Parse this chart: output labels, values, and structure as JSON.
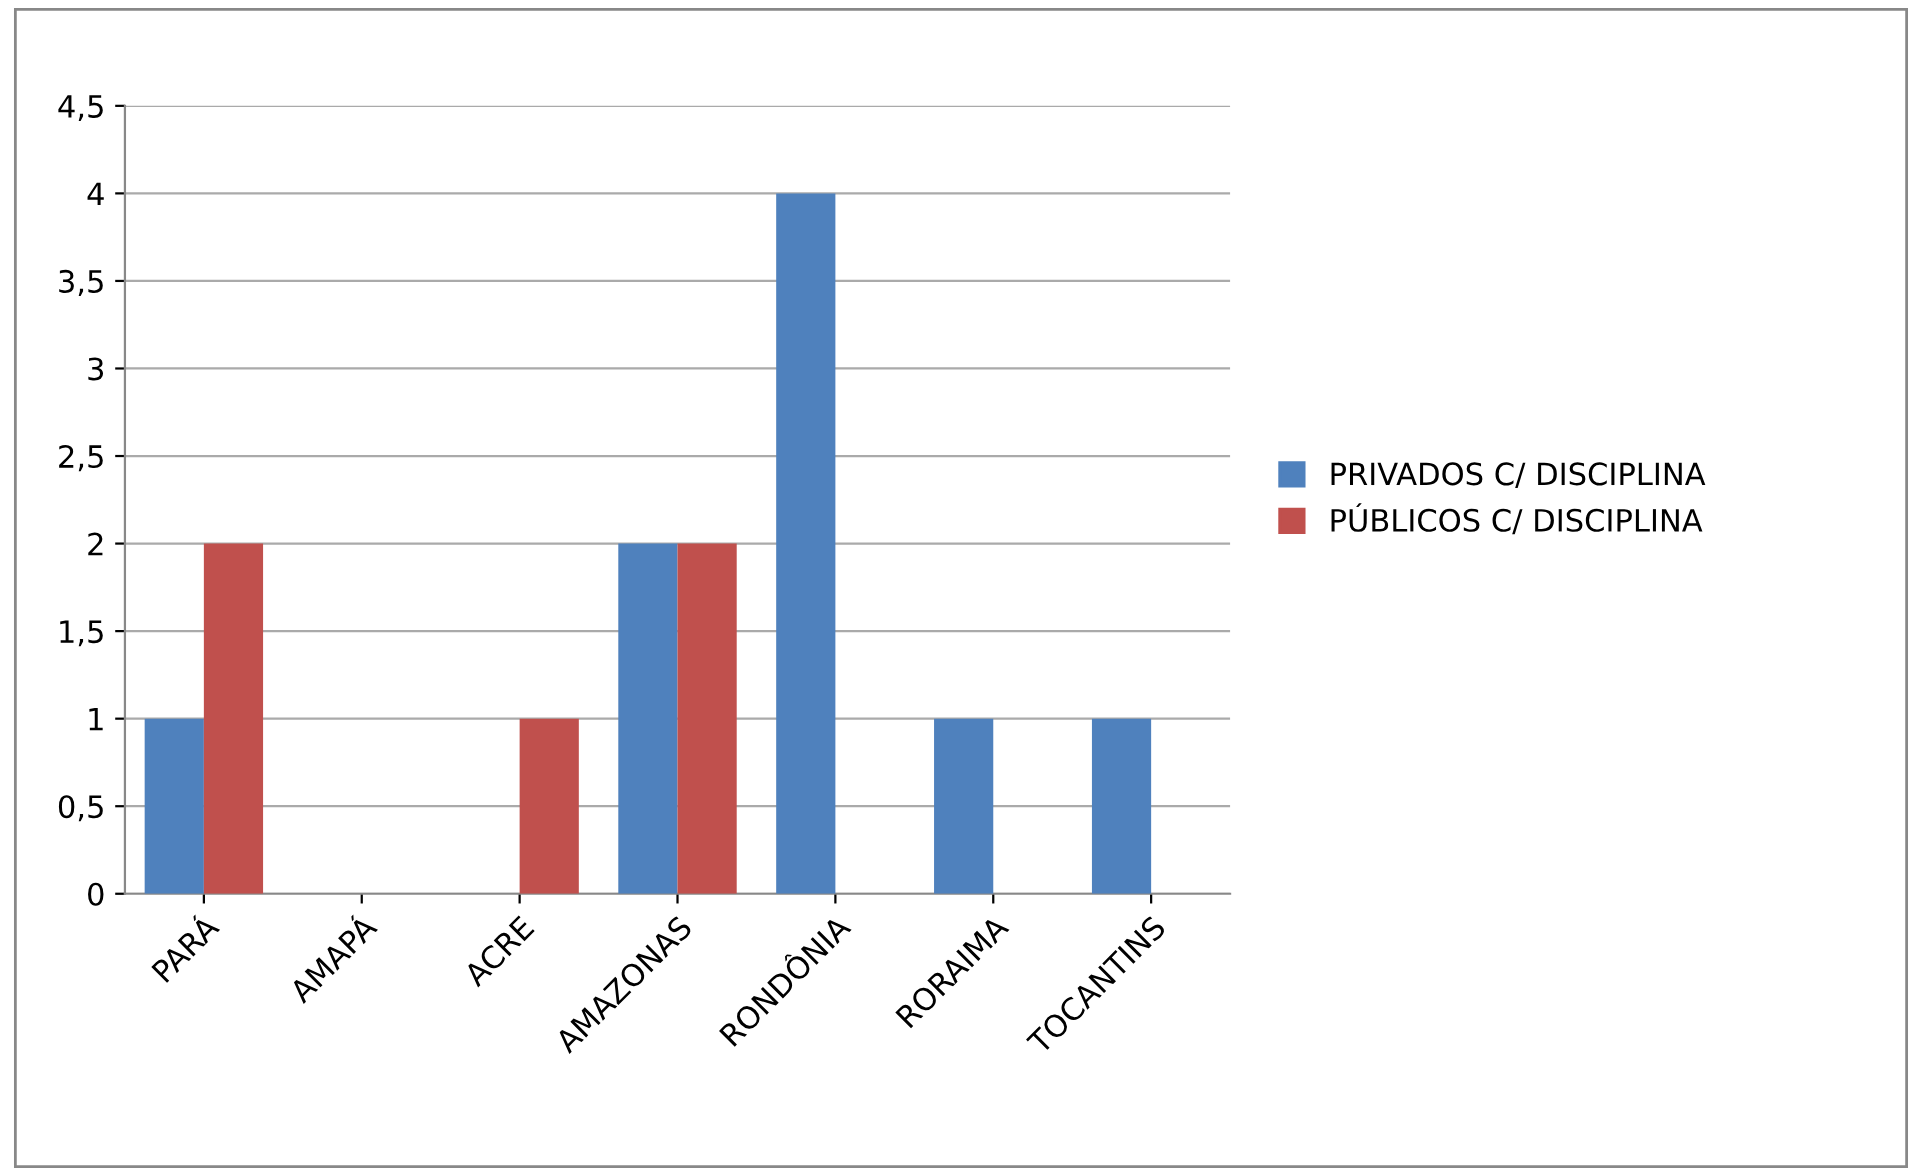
{
  "chart_data": {
    "type": "bar",
    "categories": [
      "PARÁ",
      "AMAPÁ",
      "ACRE",
      "AMAZONAS",
      "RONDÔNIA",
      "RORAIMA",
      "TOCANTINS"
    ],
    "series": [
      {
        "name": "PRIVADOS C/ DISCIPLINA",
        "color": "#4f81bd",
        "values": [
          1,
          0,
          0,
          2,
          4,
          1,
          1
        ]
      },
      {
        "name": "PÚBLICOS C/ DISCIPLINA",
        "color": "#c0504d",
        "values": [
          2,
          0,
          1,
          2,
          0,
          0,
          0
        ]
      }
    ],
    "ylim": [
      0,
      4.5
    ],
    "yticks": [
      0,
      {
        "value": 0.5,
        "label": "0,5"
      },
      1,
      {
        "value": 1.5,
        "label": "1,5"
      },
      2,
      {
        "value": 2.5,
        "label": "2,5"
      },
      3,
      {
        "value": 3.5,
        "label": "3,5"
      },
      4,
      {
        "value": 4.5,
        "label": "4,5"
      }
    ],
    "grid": "y",
    "legend": "right"
  }
}
